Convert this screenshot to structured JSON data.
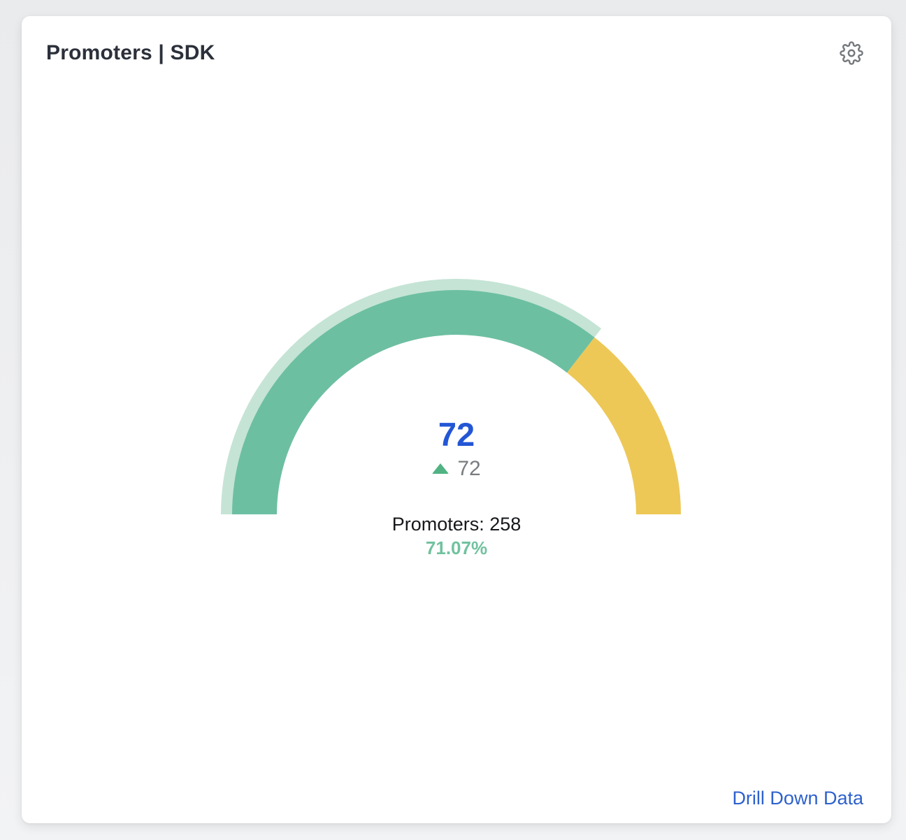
{
  "card": {
    "title": "Promoters | SDK",
    "drill_link_label": "Drill Down Data"
  },
  "icons": {
    "settings": "gear-icon",
    "delta": "triangle-up-icon"
  },
  "colors": {
    "page_background_top": "#eaebed",
    "page_background_bottom": "#f2f3f4",
    "card_background": "#ffffff",
    "title_text": "#2b303a",
    "value_text": "#2356d5",
    "delta_text": "#7a7d80",
    "delta_triangle": "#51b383",
    "breakdown_text": "#16181b",
    "percent_text": "#71c29f",
    "link_text": "#2e61cc",
    "gear_icon": "#74787c"
  },
  "chart_data": {
    "type": "gauge",
    "title": "Promoters | SDK",
    "value": 72,
    "delta": {
      "direction": "up",
      "value": 72
    },
    "breakdown_label": "Promoters: 258",
    "percent_label": "71.07%",
    "fill_percent": 71.07,
    "start_angle_deg": 180,
    "end_angle_deg": 0,
    "legend": "none",
    "colors": {
      "value_arc": "#6dbfa2",
      "track_arc": "#c5e4d5",
      "remainder_arc": "#edc857"
    }
  }
}
